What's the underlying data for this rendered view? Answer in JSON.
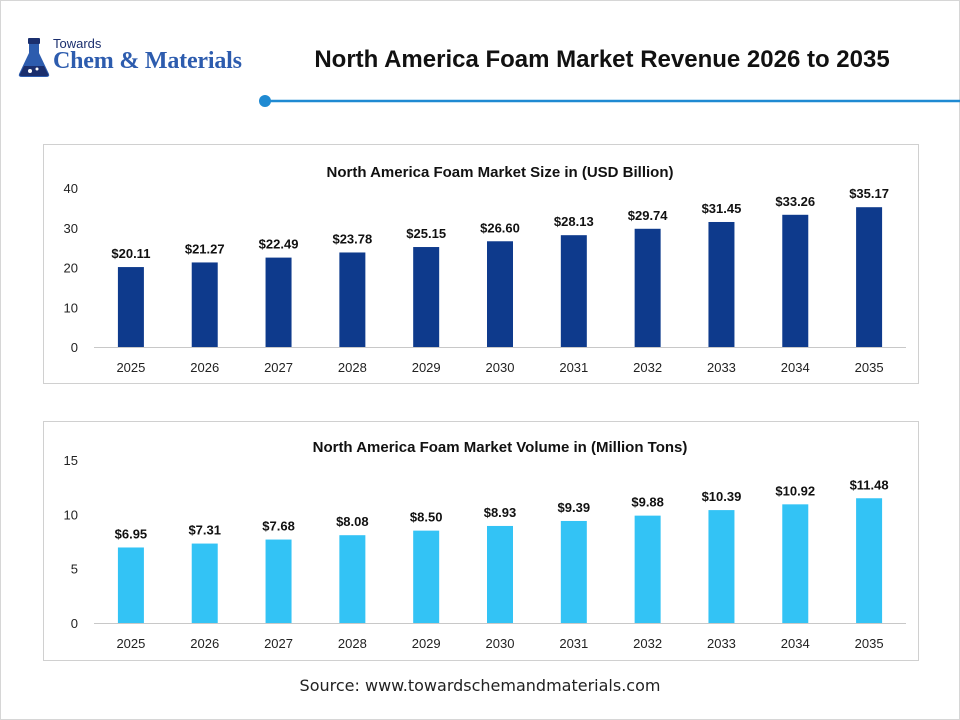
{
  "header": {
    "logo_small": "Towards",
    "logo_big": "Chem & Materials",
    "title": "North America Foam Market Revenue 2026 to 2035",
    "accent_color": "#1f8ad2"
  },
  "source": {
    "prefix": "Source:",
    "url": "www.towardschemandmaterials.com"
  },
  "chart_data": [
    {
      "type": "bar",
      "title": "North America Foam Market Size in (USD Billion)",
      "categories": [
        "2025",
        "2026",
        "2027",
        "2028",
        "2029",
        "2030",
        "2031",
        "2032",
        "2033",
        "2034",
        "2035"
      ],
      "values": [
        20.11,
        21.27,
        22.49,
        23.78,
        25.15,
        26.6,
        28.13,
        29.74,
        31.45,
        33.26,
        35.17
      ],
      "labels": [
        "$20.11",
        "$21.27",
        "$22.49",
        "$23.78",
        "$25.15",
        "$26.60",
        "$28.13",
        "$29.74",
        "$31.45",
        "$33.26",
        "$35.17"
      ],
      "ylim": [
        0,
        40
      ],
      "yticks": [
        0,
        10,
        20,
        30,
        40
      ],
      "color": "#0e3a8c",
      "grid": false,
      "xlabel": "",
      "ylabel": ""
    },
    {
      "type": "bar",
      "title": "North America Foam Market Volume in (Million Tons)",
      "categories": [
        "2025",
        "2026",
        "2027",
        "2028",
        "2029",
        "2030",
        "2031",
        "2032",
        "2033",
        "2034",
        "2035"
      ],
      "values": [
        6.95,
        7.31,
        7.68,
        8.08,
        8.5,
        8.93,
        9.39,
        9.88,
        10.39,
        10.92,
        11.48
      ],
      "labels": [
        "$6.95",
        "$7.31",
        "$7.68",
        "$8.08",
        "$8.50",
        "$8.93",
        "$9.39",
        "$9.88",
        "$10.39",
        "$10.92",
        "$11.48"
      ],
      "ylim": [
        0,
        15
      ],
      "yticks": [
        0,
        5,
        10,
        15
      ],
      "color": "#33c3f5",
      "grid": false,
      "xlabel": "",
      "ylabel": ""
    }
  ]
}
